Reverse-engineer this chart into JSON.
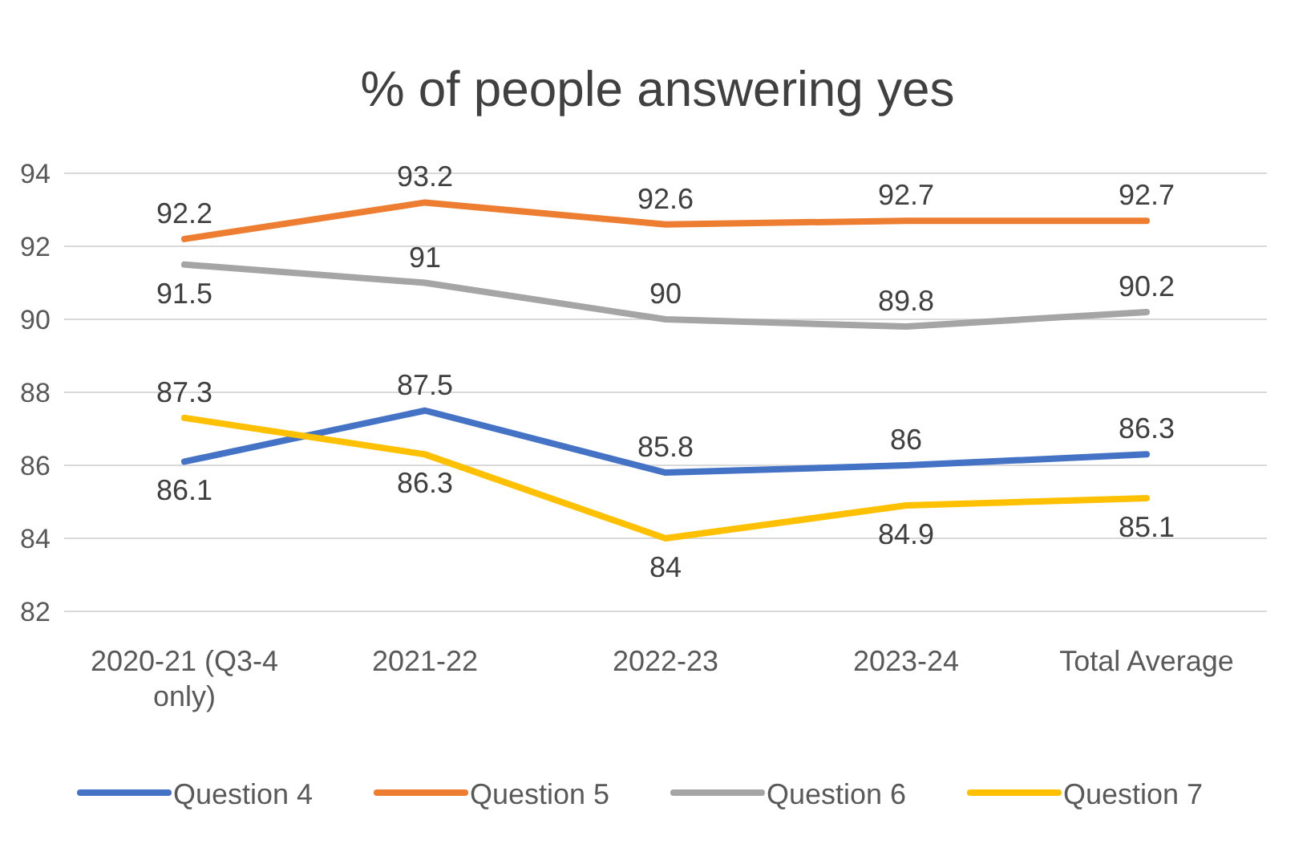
{
  "chart_data": {
    "type": "line",
    "title": "% of people answering yes",
    "categories": [
      "2020-21 (Q3-4 only)",
      "2021-22",
      "2022-23",
      "2023-24",
      "Total Average"
    ],
    "series": [
      {
        "name": "Question 4",
        "color": "#4472c4",
        "values": [
          86.1,
          87.5,
          85.8,
          86,
          86.3
        ]
      },
      {
        "name": "Question 5",
        "color": "#ed7d31",
        "values": [
          92.2,
          93.2,
          92.6,
          92.7,
          92.7
        ]
      },
      {
        "name": "Question 6",
        "color": "#a5a5a5",
        "values": [
          91.5,
          91,
          90,
          89.8,
          90.2
        ]
      },
      {
        "name": "Question 7",
        "color": "#ffc000",
        "values": [
          87.3,
          86.3,
          84,
          84.9,
          85.1
        ]
      }
    ],
    "ylim": [
      82,
      94
    ],
    "yticks": [
      82,
      84,
      86,
      88,
      90,
      92,
      94
    ],
    "grid": "y",
    "legend": "bottom",
    "data_labels": true,
    "marker": "none",
    "line_style": "solid"
  }
}
